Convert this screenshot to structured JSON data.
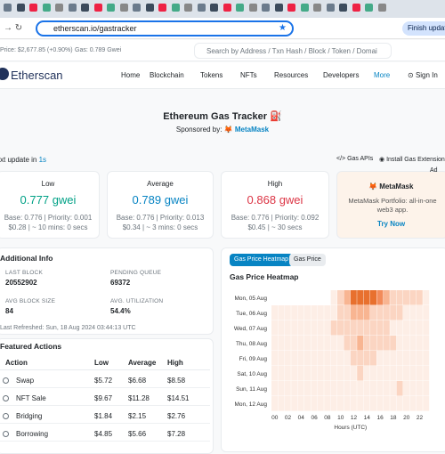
{
  "browser": {
    "url": "etherscan.io/gastracker",
    "update_button": "Finish update"
  },
  "topbar": {
    "eth_price": "Price: $2,677.85 (+0.90%)",
    "gas": "Gas: 0.789 Gwei",
    "search_placeholder": "Search by Address / Txn Hash / Block / Token / Domai"
  },
  "nav": {
    "logo": "Etherscan",
    "items": [
      "Home",
      "Blockchain",
      "Tokens",
      "NFTs",
      "Resources",
      "Developers",
      "More"
    ],
    "sign_in": "Sign In"
  },
  "header": {
    "title": "Ethereum Gas Tracker",
    "sponsored_by": "Sponsored by:",
    "sponsor": "MetaMask"
  },
  "update": {
    "label": "xt update in",
    "countdown": "1s",
    "links": [
      "Gas APIs",
      "Install Gas Extension"
    ]
  },
  "gas_cards": [
    {
      "label": "Low",
      "price": "0.777 gwei",
      "base": "Base: 0.776 | Priority: 0.001",
      "cost": "$0.28 | ~ 10 mins: 0 secs"
    },
    {
      "label": "Average",
      "price": "0.789 gwei",
      "base": "Base: 0.776 | Priority: 0.013",
      "cost": "$0.34 | ~ 3 mins: 0 secs"
    },
    {
      "label": "High",
      "price": "0.868 gwei",
      "base": "Base: 0.776 | Priority: 0.092",
      "cost": "$0.45 | ~ 30 secs"
    }
  ],
  "ad": {
    "tag": "Ad",
    "name": "MetaMask",
    "text": "MetaMask Portfolio: all-in-one web3 app.",
    "cta": "Try Now"
  },
  "additional_info": {
    "title": "Additional Info",
    "stats": [
      {
        "label": "LAST BLOCK",
        "value": "20552902"
      },
      {
        "label": "PENDING QUEUE",
        "value": "69372"
      },
      {
        "label": "AVG BLOCK SIZE",
        "value": "84"
      },
      {
        "label": "AVG. UTILIZATION",
        "value": "54.4%"
      }
    ],
    "last_refreshed": "Last Refreshed: Sun, 18 Aug 2024 03:44:13 UTC"
  },
  "featured_actions": {
    "title": "Featured Actions",
    "columns": [
      "Action",
      "Low",
      "Average",
      "High"
    ],
    "rows": [
      [
        "Swap",
        "$5.72",
        "$6.68",
        "$8.58"
      ],
      [
        "NFT Sale",
        "$9.67",
        "$11.28",
        "$14.51"
      ],
      [
        "Bridging",
        "$1.84",
        "$2.15",
        "$2.76"
      ],
      [
        "Borrowing",
        "$4.85",
        "$5.66",
        "$7.28"
      ]
    ]
  },
  "heatmap": {
    "tabs": [
      "Gas Price Heatmap",
      "Gas Price"
    ],
    "title": "Gas Price Heatmap",
    "rows": [
      "Mon, 05 Aug",
      "Tue, 06 Aug",
      "Wed, 07 Aug",
      "Thu, 08 Aug",
      "Fri, 09 Aug",
      "Sat, 10 Aug",
      "Sun, 11 Aug",
      "Mon, 12 Aug"
    ],
    "hours": [
      "00",
      "02",
      "04",
      "06",
      "08",
      "10",
      "12",
      "14",
      "16",
      "18",
      "20",
      "22"
    ],
    "x_label": "Hours (UTC)",
    "colors": [
      "#fdeee6",
      "#fbd5c2",
      "#f8b592",
      "#f28b5a",
      "#e8702e"
    ],
    "levels": [
      [
        null,
        null,
        null,
        null,
        null,
        null,
        null,
        null,
        null,
        1,
        2,
        3,
        5,
        5,
        5,
        5,
        4,
        3,
        2,
        2,
        2,
        2,
        2,
        1
      ],
      [
        1,
        1,
        1,
        1,
        1,
        1,
        1,
        1,
        1,
        1,
        2,
        2,
        3,
        3,
        3,
        2,
        2,
        2,
        2,
        2,
        1,
        1,
        1,
        1
      ],
      [
        1,
        1,
        1,
        1,
        1,
        1,
        1,
        1,
        1,
        2,
        2,
        2,
        2,
        2,
        2,
        2,
        2,
        2,
        1,
        1,
        1,
        1,
        1,
        1
      ],
      [
        1,
        1,
        1,
        1,
        1,
        1,
        1,
        1,
        1,
        1,
        1,
        2,
        2,
        3,
        2,
        2,
        2,
        2,
        2,
        1,
        1,
        1,
        1,
        1
      ],
      [
        1,
        1,
        1,
        1,
        1,
        1,
        1,
        1,
        1,
        1,
        1,
        1,
        2,
        2,
        2,
        2,
        1,
        1,
        1,
        1,
        1,
        1,
        1,
        1
      ],
      [
        1,
        1,
        1,
        1,
        1,
        1,
        1,
        1,
        1,
        1,
        1,
        1,
        1,
        2,
        1,
        1,
        1,
        1,
        1,
        1,
        1,
        1,
        1,
        1
      ],
      [
        1,
        1,
        1,
        1,
        1,
        1,
        1,
        1,
        1,
        1,
        1,
        1,
        1,
        1,
        1,
        1,
        1,
        1,
        1,
        2,
        1,
        1,
        1,
        1
      ],
      [
        1,
        1,
        1,
        1,
        1,
        1,
        1,
        1,
        1,
        1,
        1,
        1,
        1,
        1,
        1,
        1,
        1,
        1,
        1,
        1,
        1,
        1,
        1,
        1
      ]
    ]
  }
}
